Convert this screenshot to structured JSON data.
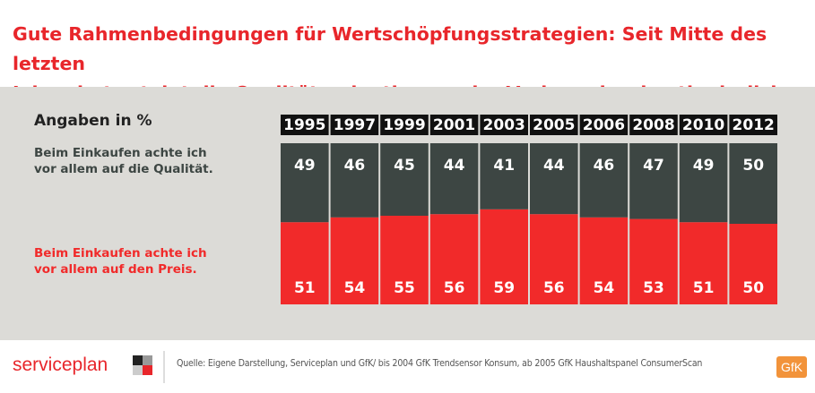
{
  "chart_data": {
    "type": "bar",
    "stacked": true,
    "title": "Gute Rahmenbedingungen für Wertschöpfungsstrategien: Seit Mitte des letzten\nJahrzehnts steigt die Qualitätsorientierung der Verbraucher kontinuierlich an.",
    "subtitle": "Angaben in %",
    "categories": [
      "1995",
      "1997",
      "1999",
      "2001",
      "2003",
      "2005",
      "2006",
      "2008",
      "2010",
      "2012"
    ],
    "series": [
      {
        "name": "Beim Einkaufen achte ich\nvor allem auf die Qualität.",
        "color": "#3d4643",
        "values": [
          49,
          46,
          45,
          44,
          41,
          44,
          46,
          47,
          49,
          50
        ]
      },
      {
        "name": "Beim Einkaufen achte ich\nvor allem auf den Preis.",
        "color": "#f12a2a",
        "values": [
          51,
          54,
          55,
          56,
          59,
          56,
          54,
          53,
          51,
          50
        ]
      }
    ],
    "ylim": [
      0,
      100
    ],
    "source": "Quelle: Eigene Darstellung, Serviceplan und GfK/ bis 2004 GfK Trendsensor Konsum, ab 2005 GfK Haushaltspanel ConsumerScan",
    "logo_left": "serviceplan",
    "logo_right": "GfK"
  }
}
